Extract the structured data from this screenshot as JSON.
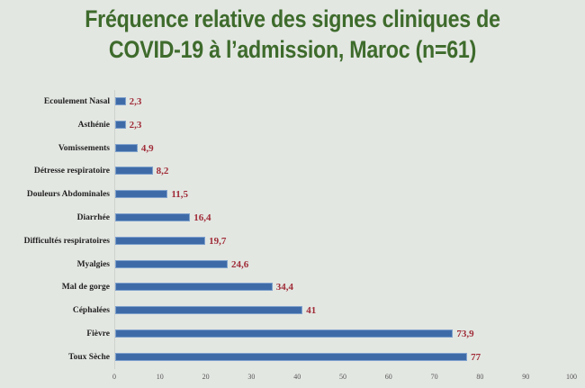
{
  "title": {
    "line1": "Fréquence relative des signes cliniques de",
    "line2": "COVID-19 à l’admission, Maroc (n=61)"
  },
  "colors": {
    "background": "#e3e7e2",
    "title": "#3e6b2c",
    "bar": "#3e6ba8",
    "value_label": "#a02c38"
  },
  "chart_data": {
    "type": "bar",
    "orientation": "horizontal",
    "title": "Fréquence relative des signes cliniques de COVID-19 à l’admission, Maroc (n=61)",
    "xlabel": "",
    "ylabel": "",
    "xlim": [
      0,
      100
    ],
    "x_ticks": [
      "0",
      "10",
      "20",
      "30",
      "40",
      "50",
      "60",
      "70",
      "80",
      "90",
      "100"
    ],
    "grid": false,
    "legend": null,
    "categories": [
      "Ecoulement Nasal",
      "Asthénie",
      "Vomissements",
      "Détresse respiratoire",
      "Douleurs Abdominales",
      "Diarrhée",
      "Difficultés respiratoires",
      "Myalgies",
      "Mal de gorge",
      "Céphalées",
      "Fièvre",
      "Toux Sèche"
    ],
    "values": [
      2.3,
      2.3,
      4.9,
      8.2,
      11.5,
      16.4,
      19.7,
      24.6,
      34.4,
      41,
      73.9,
      77
    ],
    "value_labels": [
      "2,3",
      "2,3",
      "4,9",
      "8,2",
      "11,5",
      "16,4",
      "19,7",
      "24,6",
      "34,4",
      "41",
      "73,9",
      "77"
    ]
  }
}
